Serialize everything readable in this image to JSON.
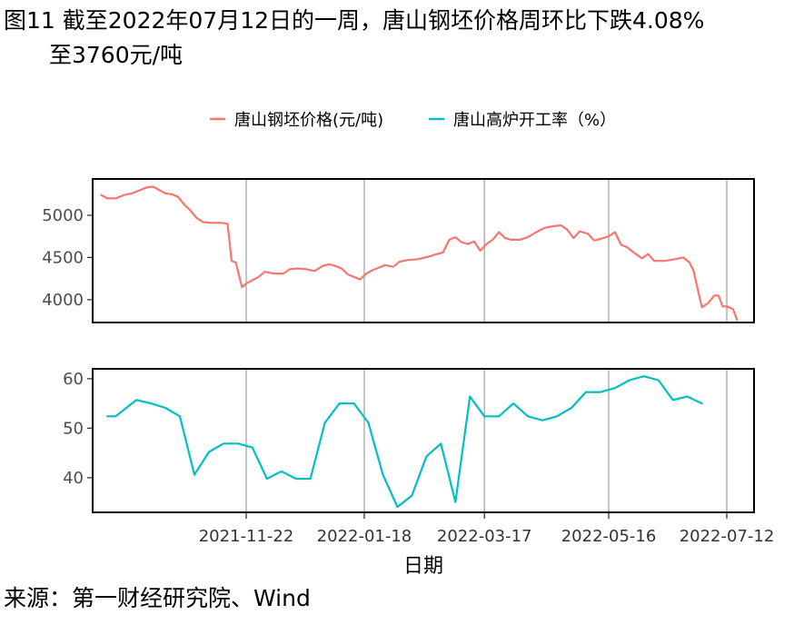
{
  "title": {
    "line1": "图11  截至2022年07月12日的一周，唐山钢坯价格周环比下跌4.08%",
    "line2": "至3760元/吨"
  },
  "source": "来源：第一财经研究院、Wind",
  "chart_data": {
    "type": "line",
    "xlabel": "日期",
    "x_ticks": [
      "2021-11-22",
      "2022-01-18",
      "2022-03-17",
      "2022-05-16",
      "2022-07-12"
    ],
    "legend": {
      "placement": "top",
      "entries": [
        {
          "name": "唐山钢坯价格(元/吨)",
          "color": "#f8766d"
        },
        {
          "name": "唐山高炉开工率（%）",
          "color": "#00bfc4"
        }
      ]
    },
    "grid": "vertical major gridlines at date ticks",
    "panels": [
      {
        "series": "唐山钢坯价格(元/吨)",
        "color": "#f8766d",
        "ylim": [
          3730,
          5430
        ],
        "y_ticks": [
          4000,
          4500,
          5000
        ],
        "points": [
          [
            "2021-09-13",
            5240
          ],
          [
            "2021-09-16",
            5200
          ],
          [
            "2021-09-20",
            5200
          ],
          [
            "2021-09-24",
            5240
          ],
          [
            "2021-09-28",
            5260
          ],
          [
            "2021-10-01",
            5290
          ],
          [
            "2021-10-05",
            5330
          ],
          [
            "2021-10-08",
            5340
          ],
          [
            "2021-10-11",
            5300
          ],
          [
            "2021-10-14",
            5260
          ],
          [
            "2021-10-17",
            5250
          ],
          [
            "2021-10-20",
            5220
          ],
          [
            "2021-10-23",
            5130
          ],
          [
            "2021-10-26",
            5060
          ],
          [
            "2021-10-29",
            4970
          ],
          [
            "2021-11-01",
            4920
          ],
          [
            "2021-11-05",
            4910
          ],
          [
            "2021-11-10",
            4910
          ],
          [
            "2021-11-13",
            4900
          ],
          [
            "2021-11-15",
            4460
          ],
          [
            "2021-11-17",
            4440
          ],
          [
            "2021-11-19",
            4240
          ],
          [
            "2021-11-20",
            4150
          ],
          [
            "2021-11-22",
            4190
          ],
          [
            "2021-11-25",
            4230
          ],
          [
            "2021-11-28",
            4270
          ],
          [
            "2021-12-01",
            4330
          ],
          [
            "2021-12-05",
            4310
          ],
          [
            "2021-12-10",
            4310
          ],
          [
            "2021-12-13",
            4360
          ],
          [
            "2021-12-17",
            4370
          ],
          [
            "2021-12-21",
            4360
          ],
          [
            "2021-12-25",
            4340
          ],
          [
            "2021-12-29",
            4400
          ],
          [
            "2022-01-01",
            4420
          ],
          [
            "2022-01-04",
            4400
          ],
          [
            "2022-01-07",
            4370
          ],
          [
            "2022-01-10",
            4300
          ],
          [
            "2022-01-13",
            4270
          ],
          [
            "2022-01-16",
            4240
          ],
          [
            "2022-01-19",
            4310
          ],
          [
            "2022-01-22",
            4350
          ],
          [
            "2022-01-25",
            4380
          ],
          [
            "2022-01-28",
            4410
          ],
          [
            "2022-02-01",
            4390
          ],
          [
            "2022-02-04",
            4450
          ],
          [
            "2022-02-08",
            4470
          ],
          [
            "2022-02-13",
            4480
          ],
          [
            "2022-02-18",
            4510
          ],
          [
            "2022-02-22",
            4540
          ],
          [
            "2022-02-25",
            4560
          ],
          [
            "2022-02-28",
            4710
          ],
          [
            "2022-03-03",
            4740
          ],
          [
            "2022-03-06",
            4680
          ],
          [
            "2022-03-09",
            4660
          ],
          [
            "2022-03-12",
            4690
          ],
          [
            "2022-03-15",
            4580
          ],
          [
            "2022-03-18",
            4660
          ],
          [
            "2022-03-21",
            4710
          ],
          [
            "2022-03-24",
            4800
          ],
          [
            "2022-03-27",
            4730
          ],
          [
            "2022-03-30",
            4710
          ],
          [
            "2022-04-03",
            4710
          ],
          [
            "2022-04-07",
            4740
          ],
          [
            "2022-04-11",
            4800
          ],
          [
            "2022-04-15",
            4850
          ],
          [
            "2022-04-19",
            4870
          ],
          [
            "2022-04-23",
            4880
          ],
          [
            "2022-04-26",
            4830
          ],
          [
            "2022-04-29",
            4730
          ],
          [
            "2022-05-02",
            4810
          ],
          [
            "2022-05-06",
            4780
          ],
          [
            "2022-05-09",
            4700
          ],
          [
            "2022-05-12",
            4720
          ],
          [
            "2022-05-16",
            4750
          ],
          [
            "2022-05-19",
            4800
          ],
          [
            "2022-05-22",
            4650
          ],
          [
            "2022-05-25",
            4620
          ],
          [
            "2022-05-28",
            4560
          ],
          [
            "2022-06-01",
            4490
          ],
          [
            "2022-06-04",
            4540
          ],
          [
            "2022-06-07",
            4460
          ],
          [
            "2022-06-12",
            4460
          ],
          [
            "2022-06-17",
            4480
          ],
          [
            "2022-06-21",
            4500
          ],
          [
            "2022-06-24",
            4440
          ],
          [
            "2022-06-26",
            4340
          ],
          [
            "2022-06-28",
            4120
          ],
          [
            "2022-06-30",
            3910
          ],
          [
            "2022-07-03",
            3960
          ],
          [
            "2022-07-06",
            4050
          ],
          [
            "2022-07-08",
            4050
          ],
          [
            "2022-07-10",
            3920
          ],
          [
            "2022-07-12",
            3920
          ],
          [
            "2022-07-15",
            3890
          ],
          [
            "2022-07-17",
            3760
          ]
        ]
      },
      {
        "series": "唐山高炉开工率（%）",
        "color": "#00bfc4",
        "ylim": [
          33,
          62
        ],
        "y_ticks": [
          40,
          50,
          60
        ],
        "points": [
          [
            "2021-09-16",
            52.4
          ],
          [
            "2021-09-20",
            52.4
          ],
          [
            "2021-09-30",
            55.7
          ],
          [
            "2021-10-07",
            55.0
          ],
          [
            "2021-10-14",
            54.1
          ],
          [
            "2021-10-21",
            52.4
          ],
          [
            "2021-10-28",
            40.6
          ],
          [
            "2021-11-04",
            45.2
          ],
          [
            "2021-11-11",
            46.9
          ],
          [
            "2021-11-18",
            46.9
          ],
          [
            "2021-11-25",
            46.1
          ],
          [
            "2021-12-02",
            39.8
          ],
          [
            "2021-12-09",
            41.3
          ],
          [
            "2021-12-16",
            39.8
          ],
          [
            "2021-12-23",
            39.8
          ],
          [
            "2021-12-30",
            51.1
          ],
          [
            "2022-01-06",
            55.0
          ],
          [
            "2022-01-13",
            55.0
          ],
          [
            "2022-01-20",
            51.1
          ],
          [
            "2022-01-27",
            40.6
          ],
          [
            "2022-02-03",
            34.1
          ],
          [
            "2022-02-10",
            36.4
          ],
          [
            "2022-02-17",
            44.3
          ],
          [
            "2022-02-24",
            46.9
          ],
          [
            "2022-03-03",
            35.1
          ],
          [
            "2022-03-10",
            56.4
          ],
          [
            "2022-03-17",
            52.4
          ],
          [
            "2022-03-24",
            52.4
          ],
          [
            "2022-03-31",
            55.0
          ],
          [
            "2022-04-07",
            52.4
          ],
          [
            "2022-04-14",
            51.6
          ],
          [
            "2022-04-21",
            52.4
          ],
          [
            "2022-04-28",
            54.1
          ],
          [
            "2022-05-05",
            57.3
          ],
          [
            "2022-05-12",
            57.3
          ],
          [
            "2022-05-19",
            58.1
          ],
          [
            "2022-05-26",
            59.7
          ],
          [
            "2022-06-02",
            60.5
          ],
          [
            "2022-06-09",
            59.7
          ],
          [
            "2022-06-16",
            55.7
          ],
          [
            "2022-06-23",
            56.4
          ],
          [
            "2022-06-30",
            55.0
          ]
        ]
      }
    ]
  }
}
